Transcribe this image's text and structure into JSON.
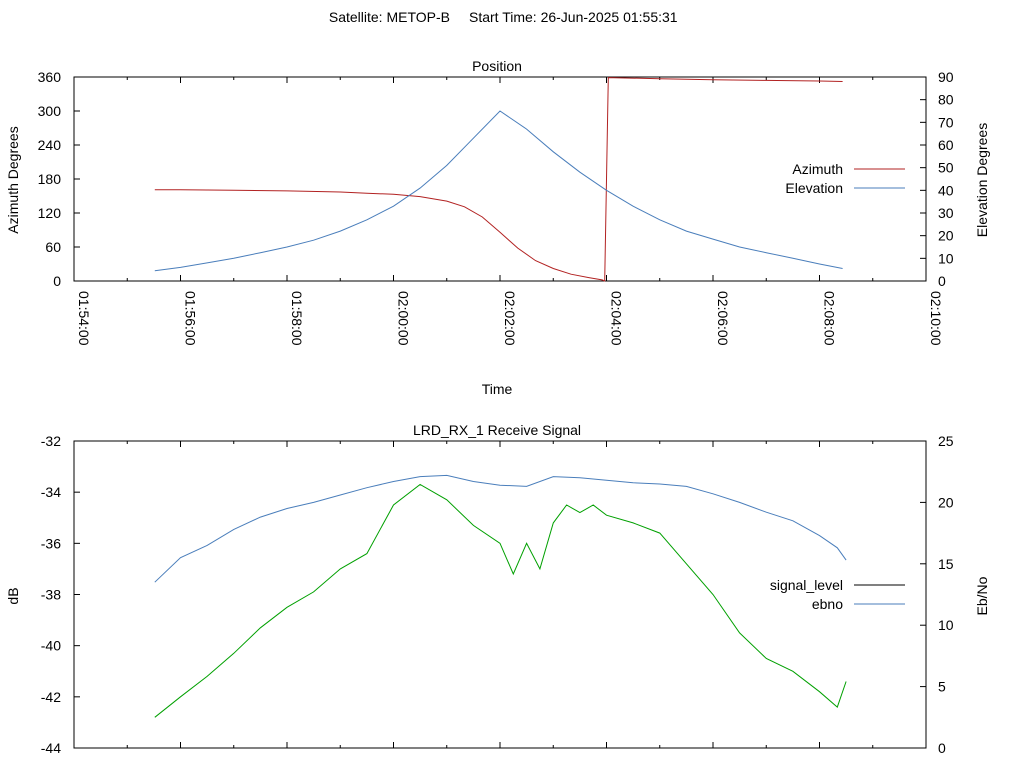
{
  "header": {
    "satellite_label": "Satellite: METOP-B",
    "start_time_label": "Start Time: 26-Jun-2025 01:55:31"
  },
  "chart_data": [
    {
      "type": "line",
      "title": "Position",
      "xlabel": "Time",
      "ylabel_left": "Azimuth Degrees",
      "ylabel_right": "Elevation Degrees",
      "xlim": [
        "01:54:00",
        "02:10:00"
      ],
      "x_ticks": [
        "01:54:00",
        "01:56:00",
        "01:58:00",
        "02:00:00",
        "02:02:00",
        "02:04:00",
        "02:06:00",
        "02:08:00",
        "02:10:00"
      ],
      "ylim_left": [
        0,
        360
      ],
      "y_ticks_left": [
        "0",
        "60",
        "120",
        "180",
        "240",
        "300",
        "360"
      ],
      "ylim_right": [
        0,
        90
      ],
      "y_ticks_right": [
        "0",
        "10",
        "20",
        "30",
        "40",
        "50",
        "60",
        "70",
        "80",
        "90"
      ],
      "grid": false,
      "legend_position": "right",
      "series": [
        {
          "name": "Azimuth",
          "axis": "left",
          "color": "#b22222",
          "x": [
            "01:55:31",
            "01:56:00",
            "01:57:00",
            "01:58:00",
            "01:59:00",
            "01:59:30",
            "02:00:00",
            "02:00:30",
            "02:01:00",
            "02:01:20",
            "02:01:40",
            "02:02:00",
            "02:02:20",
            "02:02:40",
            "02:03:00",
            "02:03:20",
            "02:03:40",
            "02:03:55",
            "02:03:58",
            "02:04:02",
            "02:05:00",
            "02:06:00",
            "02:07:00",
            "02:08:00",
            "02:08:26"
          ],
          "values": [
            161,
            161,
            160,
            159,
            157,
            155,
            153,
            149,
            141,
            131,
            113,
            86,
            58,
            36,
            22,
            12,
            6,
            2,
            0,
            359,
            357,
            355,
            354,
            353,
            352
          ]
        },
        {
          "name": "Elevation",
          "axis": "right",
          "color": "#4a7ebb",
          "x": [
            "01:55:31",
            "01:56:00",
            "01:56:30",
            "01:57:00",
            "01:57:30",
            "01:58:00",
            "01:58:30",
            "01:59:00",
            "01:59:30",
            "02:00:00",
            "02:00:30",
            "02:01:00",
            "02:01:30",
            "02:02:00",
            "02:02:30",
            "02:03:00",
            "02:03:30",
            "02:04:00",
            "02:04:30",
            "02:05:00",
            "02:05:30",
            "02:06:00",
            "02:06:30",
            "02:07:00",
            "02:07:30",
            "02:08:00",
            "02:08:26"
          ],
          "values": [
            4.5,
            6,
            8,
            10,
            12.5,
            15,
            18,
            22,
            27,
            33,
            41,
            51,
            63,
            75,
            67,
            57,
            48,
            40,
            33,
            27,
            22,
            18.5,
            15,
            12.5,
            10,
            7.5,
            5.5
          ]
        }
      ]
    },
    {
      "type": "line",
      "title": "LRD_RX_1 Receive Signal",
      "ylabel_left": "dB",
      "ylabel_right": "Eb/No",
      "xlim": [
        "01:54:00",
        "02:10:00"
      ],
      "ylim_left": [
        -44,
        -32
      ],
      "y_ticks_left": [
        "-44",
        "-42",
        "-40",
        "-38",
        "-36",
        "-34",
        "-32"
      ],
      "ylim_right": [
        0,
        25
      ],
      "y_ticks_right": [
        "0",
        "5",
        "10",
        "15",
        "20",
        "25"
      ],
      "grid": false,
      "legend_position": "right",
      "series": [
        {
          "name": "signal_level",
          "axis": "left",
          "color": "#00a000",
          "x": [
            "01:55:31",
            "01:56:00",
            "01:56:30",
            "01:57:00",
            "01:57:30",
            "01:58:00",
            "01:58:30",
            "01:59:00",
            "01:59:30",
            "02:00:00",
            "02:00:30",
            "02:01:00",
            "02:01:30",
            "02:02:00",
            "02:02:15",
            "02:02:30",
            "02:02:45",
            "02:03:00",
            "02:03:15",
            "02:03:30",
            "02:03:45",
            "02:04:00",
            "02:04:30",
            "02:05:00",
            "02:05:30",
            "02:06:00",
            "02:06:30",
            "02:07:00",
            "02:07:30",
            "02:08:00",
            "02:08:20",
            "02:08:30"
          ],
          "values": [
            -42.8,
            -42,
            -41.2,
            -40.3,
            -39.3,
            -38.5,
            -37.9,
            -37,
            -36.4,
            -34.5,
            -33.7,
            -34.3,
            -35.3,
            -36,
            -37.2,
            -36,
            -37,
            -35.2,
            -34.5,
            -34.8,
            -34.5,
            -34.9,
            -35.2,
            -35.6,
            -36.8,
            -38,
            -39.5,
            -40.5,
            -41,
            -41.8,
            -42.4,
            -41.4
          ]
        },
        {
          "name": "ebno",
          "axis": "right",
          "color": "#4a7ebb",
          "x": [
            "01:55:31",
            "01:56:00",
            "01:56:30",
            "01:57:00",
            "01:57:30",
            "01:58:00",
            "01:58:30",
            "01:59:00",
            "01:59:30",
            "02:00:00",
            "02:00:30",
            "02:01:00",
            "02:01:30",
            "02:02:00",
            "02:02:30",
            "02:03:00",
            "02:03:30",
            "02:04:00",
            "02:04:30",
            "02:05:00",
            "02:05:30",
            "02:06:00",
            "02:06:30",
            "02:07:00",
            "02:07:30",
            "02:08:00",
            "02:08:20",
            "02:08:30"
          ],
          "values": [
            13.5,
            15.5,
            16.5,
            17.8,
            18.8,
            19.5,
            20.0,
            20.6,
            21.2,
            21.7,
            22.1,
            22.2,
            21.7,
            21.4,
            21.3,
            22.1,
            22.0,
            21.8,
            21.6,
            21.5,
            21.3,
            20.7,
            20.0,
            19.2,
            18.5,
            17.3,
            16.3,
            15.3
          ]
        }
      ]
    }
  ]
}
